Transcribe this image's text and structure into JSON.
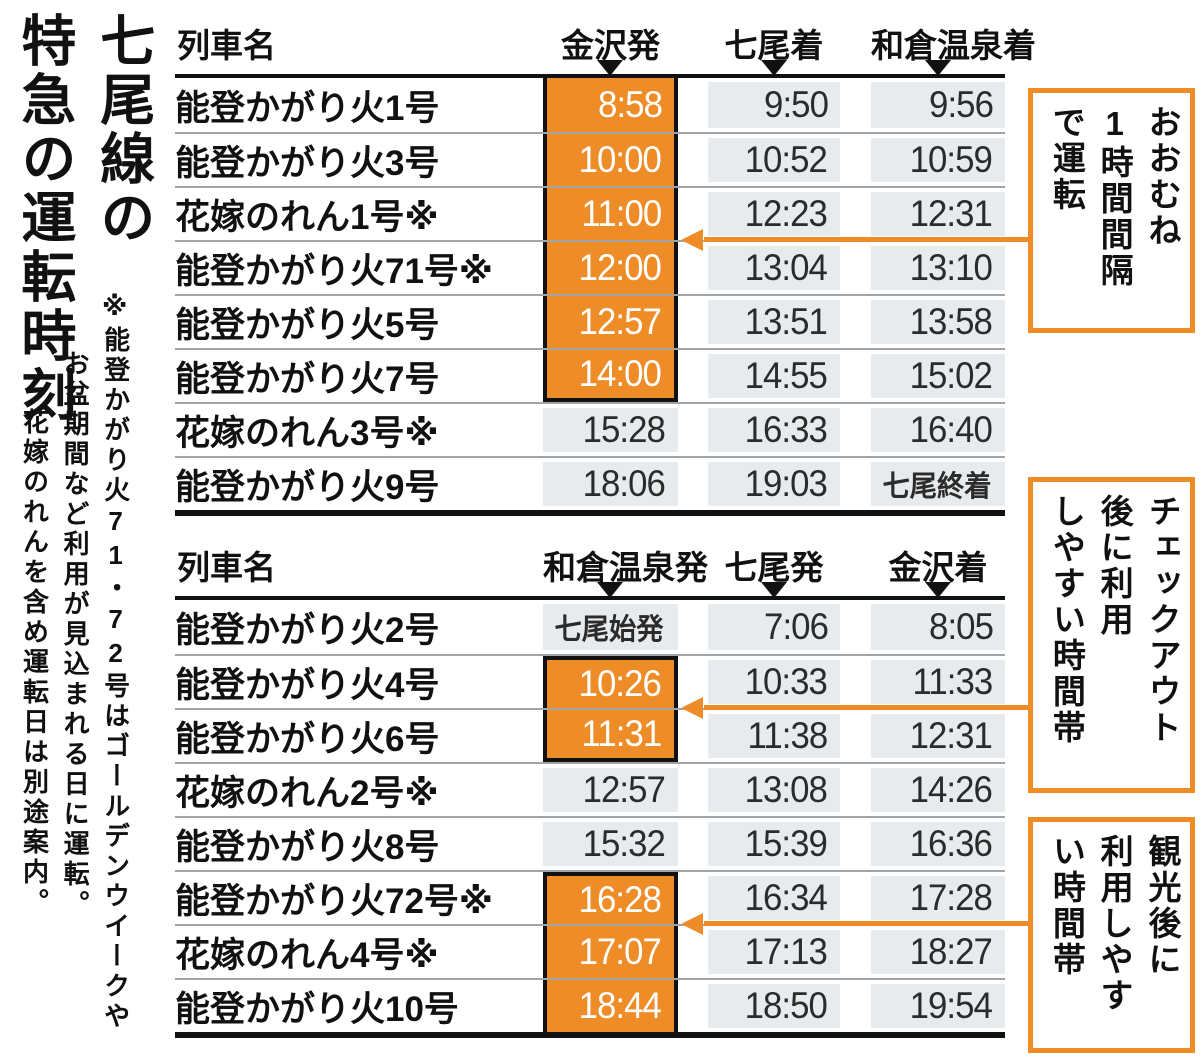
{
  "title": {
    "lines": [
      "七尾線の",
      "特急の運転時刻"
    ]
  },
  "note": {
    "lines": [
      "※能登かがり火71・72号はゴールデンウイークや",
      "お盆期間など利用が見込まれる日に運転。",
      "花嫁のれんを含め運転日は別途案内。"
    ]
  },
  "colors": {
    "accent_orange": "#ee8c28",
    "cell_bg": "#e8ebed",
    "rule_black": "#111111",
    "separator_gray": "#9fa5a8"
  },
  "outbound": {
    "headers": {
      "name": "列車名",
      "dep": "金沢発",
      "mid": "七尾着",
      "arr": "和倉温泉着"
    },
    "rows": [
      {
        "name": "能登かがり火1号",
        "dep": "8:58",
        "mid": "9:50",
        "arr": "9:56"
      },
      {
        "name": "能登かがり火3号",
        "dep": "10:00",
        "mid": "10:52",
        "arr": "10:59"
      },
      {
        "name": "花嫁のれん1号※",
        "dep": "11:00",
        "mid": "12:23",
        "arr": "12:31"
      },
      {
        "name": "能登かがり火71号※",
        "dep": "12:00",
        "mid": "13:04",
        "arr": "13:10"
      },
      {
        "name": "能登かがり火5号",
        "dep": "12:57",
        "mid": "13:51",
        "arr": "13:58"
      },
      {
        "name": "能登かがり火7号",
        "dep": "14:00",
        "mid": "14:55",
        "arr": "15:02"
      },
      {
        "name": "花嫁のれん3号※",
        "dep": "15:28",
        "mid": "16:33",
        "arr": "16:40"
      },
      {
        "name": "能登かがり火9号",
        "dep": "18:06",
        "mid": "19:03",
        "arr": "七尾終着"
      }
    ],
    "highlighted_dep_rows": [
      0,
      1,
      2,
      3,
      4,
      5
    ]
  },
  "inbound": {
    "headers": {
      "name": "列車名",
      "dep": "和倉温泉発",
      "mid": "七尾発",
      "arr": "金沢着"
    },
    "rows": [
      {
        "name": "能登かがり火2号",
        "dep": "七尾始発",
        "mid": "7:06",
        "arr": "8:05"
      },
      {
        "name": "能登かがり火4号",
        "dep": "10:26",
        "mid": "10:33",
        "arr": "11:33"
      },
      {
        "name": "能登かがり火6号",
        "dep": "11:31",
        "mid": "11:38",
        "arr": "12:31"
      },
      {
        "name": "花嫁のれん2号※",
        "dep": "12:57",
        "mid": "13:08",
        "arr": "14:26"
      },
      {
        "name": "能登かがり火8号",
        "dep": "15:32",
        "mid": "15:39",
        "arr": "16:36"
      },
      {
        "name": "能登かがり火72号※",
        "dep": "16:28",
        "mid": "16:34",
        "arr": "17:28"
      },
      {
        "name": "花嫁のれん4号※",
        "dep": "17:07",
        "mid": "17:13",
        "arr": "18:27"
      },
      {
        "name": "能登かがり火10号",
        "dep": "18:44",
        "mid": "18:50",
        "arr": "19:54"
      }
    ],
    "highlighted_dep_rows": [
      [
        1,
        2
      ],
      [
        5,
        6,
        7
      ]
    ]
  },
  "callouts": [
    {
      "lines": [
        "おおむね",
        "1時間間隔",
        "で運転"
      ]
    },
    {
      "lines": [
        "チェックアウト",
        "後に利用",
        "しやすい時間帯"
      ]
    },
    {
      "lines": [
        "観光後に",
        "利用しやす",
        "い時間帯"
      ]
    }
  ]
}
